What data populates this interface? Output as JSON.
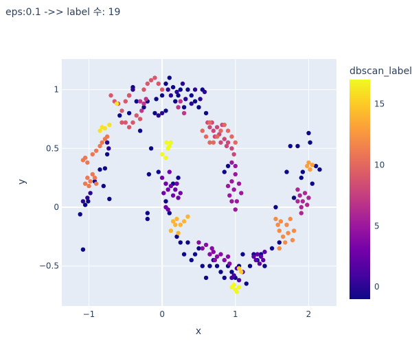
{
  "chart_data": {
    "type": "scatter",
    "title": "eps:0.1 ->> label 수: 19",
    "xlabel": "x",
    "ylabel": "y",
    "xlim": [
      -1.37,
      2.38
    ],
    "ylim": [
      -0.84,
      1.26
    ],
    "xticks": [
      -1,
      0,
      1,
      2
    ],
    "yticks": [
      -0.5,
      0,
      0.5,
      1
    ],
    "ytick_labels": [
      "−0.5",
      "0",
      "0.5",
      "1"
    ],
    "grid": true,
    "colorbar": {
      "title": "dbscan_label",
      "range": [
        -1,
        17
      ],
      "ticks": [
        0,
        5,
        10,
        15
      ],
      "colorscale": [
        "#0d0887",
        "#46039f",
        "#7201a8",
        "#9c179e",
        "#bd3786",
        "#d8576b",
        "#ed7953",
        "#fb9f3a",
        "#fdca26",
        "#f0f921"
      ]
    },
    "points": [
      [
        -1.12,
        -0.06,
        -1
      ],
      [
        -1.08,
        -0.36,
        -1
      ],
      [
        -1.05,
        0.02,
        -1
      ],
      [
        -1.01,
        0.05,
        -1
      ],
      [
        -0.92,
        0.22,
        -1
      ],
      [
        -0.85,
        0.32,
        -1
      ],
      [
        -0.8,
        0.18,
        -1
      ],
      [
        -0.78,
        0.33,
        -1
      ],
      [
        -0.75,
        0.45,
        -1
      ],
      [
        -0.72,
        0.07,
        -1
      ],
      [
        -0.58,
        0.78,
        -1
      ],
      [
        -0.45,
        0.8,
        -1
      ],
      [
        -0.4,
        1.02,
        -1
      ],
      [
        -0.35,
        0.9,
        -1
      ],
      [
        -0.3,
        0.65,
        -1
      ],
      [
        -0.25,
        0.85,
        -1
      ],
      [
        -0.2,
        0.9,
        -1
      ],
      [
        -0.2,
        -0.05,
        -1
      ],
      [
        -0.1,
        0.8,
        -1
      ],
      [
        -0.08,
        0.92,
        -1
      ],
      [
        0.0,
        0.95,
        -1
      ],
      [
        0.05,
        0.82,
        -1
      ],
      [
        0.05,
        1.05,
        -1
      ],
      [
        0.1,
        1.1,
        -1
      ],
      [
        0.15,
        1.02,
        -1
      ],
      [
        0.18,
        0.9,
        -1
      ],
      [
        0.22,
        0.95,
        -1
      ],
      [
        0.25,
        1.0,
        -1
      ],
      [
        0.3,
        0.85,
        -1
      ],
      [
        0.35,
        1.0,
        -1
      ],
      [
        0.4,
        0.95,
        -1
      ],
      [
        0.45,
        0.9,
        -1
      ],
      [
        0.5,
        0.85,
        -1
      ],
      [
        0.55,
        1.0,
        -1
      ],
      [
        0.6,
        0.8,
        -1
      ],
      [
        -0.15,
        0.5,
        -1
      ],
      [
        -0.18,
        0.28,
        -1
      ],
      [
        -0.2,
        -0.1,
        -1
      ],
      [
        -0.05,
        0.3,
        -1
      ],
      [
        0.05,
        0.05,
        -1
      ],
      [
        0.1,
        -0.05,
        -1
      ],
      [
        0.15,
        0.2,
        -1
      ],
      [
        0.22,
        0.25,
        -1
      ],
      [
        0.2,
        -0.25,
        -1
      ],
      [
        0.25,
        -0.3,
        -1
      ],
      [
        0.3,
        -0.4,
        -1
      ],
      [
        0.35,
        -0.3,
        -1
      ],
      [
        0.4,
        -0.45,
        -1
      ],
      [
        0.45,
        -0.4,
        -1
      ],
      [
        0.5,
        -0.35,
        -1
      ],
      [
        0.55,
        -0.5,
        -1
      ],
      [
        0.6,
        -0.6,
        -1
      ],
      [
        0.65,
        -0.5,
        -1
      ],
      [
        0.7,
        -0.45,
        -1
      ],
      [
        0.75,
        -0.5,
        -1
      ],
      [
        0.8,
        -0.55,
        -1
      ],
      [
        0.85,
        -0.6,
        -1
      ],
      [
        0.9,
        -0.5,
        -1
      ],
      [
        0.95,
        -0.55,
        -1
      ],
      [
        1.0,
        -0.6,
        -1
      ],
      [
        1.05,
        -0.5,
        -1
      ],
      [
        1.1,
        -0.4,
        -1
      ],
      [
        1.15,
        -0.65,
        -1
      ],
      [
        1.2,
        -0.5,
        -1
      ],
      [
        1.25,
        -0.4,
        -1
      ],
      [
        1.3,
        -0.45,
        -1
      ],
      [
        1.35,
        -0.4,
        -1
      ],
      [
        1.4,
        -0.5,
        -1
      ],
      [
        1.5,
        -0.35,
        -1
      ],
      [
        1.55,
        0.0,
        -1
      ],
      [
        1.6,
        -0.3,
        -1
      ],
      [
        1.7,
        0.3,
        -1
      ],
      [
        1.75,
        0.52,
        -1
      ],
      [
        1.8,
        0.08,
        -1
      ],
      [
        1.85,
        0.52,
        -1
      ],
      [
        1.9,
        0.25,
        -1
      ],
      [
        1.92,
        0.3,
        -1
      ],
      [
        2.0,
        0.63,
        -1
      ],
      [
        2.02,
        0.55,
        -1
      ],
      [
        2.05,
        0.2,
        -1
      ],
      [
        2.1,
        0.35,
        -1
      ],
      [
        2.15,
        0.32,
        -1
      ],
      [
        0.85,
        0.3,
        -1
      ],
      [
        0.9,
        0.35,
        -1
      ],
      [
        -1.08,
        0.05,
        0
      ],
      [
        -1.02,
        0.08,
        0
      ],
      [
        -0.98,
        0.12,
        0
      ],
      [
        -0.75,
        0.55,
        0
      ],
      [
        -0.73,
        0.5,
        0
      ],
      [
        -0.45,
        0.95,
        0
      ],
      [
        -0.4,
        1.0,
        0
      ],
      [
        0.08,
        1.0,
        0
      ],
      [
        0.12,
        0.95,
        0
      ],
      [
        0.2,
        0.98,
        0
      ],
      [
        0.28,
        1.05,
        0
      ],
      [
        0.32,
        0.92,
        0
      ],
      [
        0.0,
        0.8,
        0
      ],
      [
        -0.05,
        0.78,
        0
      ],
      [
        0.4,
        0.88,
        0
      ],
      [
        0.45,
        1.0,
        0
      ],
      [
        0.52,
        0.92,
        0
      ],
      [
        0.58,
        0.98,
        0
      ],
      [
        0.95,
        -0.6,
        1
      ],
      [
        0.98,
        -0.58,
        1
      ],
      [
        1.02,
        -0.52,
        1
      ],
      [
        1.05,
        -0.62,
        1
      ],
      [
        1.1,
        -0.55,
        1
      ],
      [
        1.25,
        -0.42,
        2
      ],
      [
        1.28,
        -0.45,
        2
      ],
      [
        1.3,
        -0.4,
        2
      ],
      [
        1.33,
        -0.48,
        2
      ],
      [
        1.35,
        -0.42,
        2
      ],
      [
        1.38,
        -0.45,
        2
      ],
      [
        1.4,
        -0.38,
        2
      ],
      [
        0.0,
        0.25,
        3
      ],
      [
        0.02,
        0.12,
        3
      ],
      [
        0.05,
        0.2,
        3
      ],
      [
        0.08,
        0.15,
        3
      ],
      [
        0.1,
        0.3,
        3
      ],
      [
        0.12,
        0.18,
        3
      ],
      [
        0.15,
        0.1,
        3
      ],
      [
        0.18,
        0.15,
        3
      ],
      [
        0.2,
        0.2,
        3
      ],
      [
        0.22,
        0.08,
        3
      ],
      [
        0.25,
        0.12,
        3
      ],
      [
        0.05,
        0.0,
        3
      ],
      [
        0.08,
        -0.02,
        3
      ],
      [
        0.5,
        -0.3,
        4
      ],
      [
        0.55,
        -0.35,
        4
      ],
      [
        0.6,
        -0.32,
        4
      ],
      [
        0.65,
        -0.4,
        4
      ],
      [
        0.7,
        -0.38,
        4
      ],
      [
        0.75,
        -0.42,
        4
      ],
      [
        0.8,
        -0.4,
        4
      ],
      [
        0.85,
        -0.45,
        4
      ],
      [
        0.9,
        -0.42,
        4
      ],
      [
        0.92,
        -0.48,
        4
      ],
      [
        0.72,
        -0.45,
        4
      ],
      [
        0.68,
        -0.35,
        4
      ],
      [
        0.9,
        0.18,
        5
      ],
      [
        0.92,
        0.1,
        5
      ],
      [
        0.95,
        0.22,
        5
      ],
      [
        0.98,
        0.15,
        5
      ],
      [
        1.0,
        0.28,
        5
      ],
      [
        1.02,
        0.05,
        5
      ],
      [
        1.05,
        0.2,
        5
      ],
      [
        1.0,
        -0.02,
        5
      ],
      [
        0.95,
        0.05,
        5
      ],
      [
        1.08,
        0.12,
        5
      ],
      [
        1.0,
        0.35,
        5
      ],
      [
        0.95,
        0.38,
        5
      ],
      [
        1.85,
        0.05,
        6
      ],
      [
        1.88,
        0.1,
        6
      ],
      [
        1.9,
        0.0,
        6
      ],
      [
        1.92,
        0.05,
        6
      ],
      [
        1.95,
        0.12,
        6
      ],
      [
        1.98,
        0.02,
        6
      ],
      [
        2.0,
        0.08,
        6
      ],
      [
        1.85,
        0.15,
        6
      ],
      [
        1.9,
        -0.05,
        6
      ],
      [
        -0.3,
        0.9,
        7
      ],
      [
        -0.28,
        0.82,
        7
      ],
      [
        -0.25,
        0.88,
        7
      ],
      [
        -0.22,
        0.92,
        7
      ],
      [
        0.22,
        0.85,
        7
      ],
      [
        0.25,
        0.9,
        7
      ],
      [
        0.3,
        0.8,
        7
      ],
      [
        0.62,
        0.72,
        8
      ],
      [
        0.65,
        0.68,
        8
      ],
      [
        0.68,
        0.72,
        8
      ],
      [
        0.7,
        0.65,
        8
      ],
      [
        0.72,
        0.6,
        8
      ],
      [
        0.75,
        0.68,
        8
      ],
      [
        0.78,
        0.62,
        8
      ],
      [
        0.8,
        0.55,
        8
      ],
      [
        0.85,
        0.58,
        8
      ],
      [
        0.88,
        0.52,
        8
      ],
      [
        0.9,
        0.55,
        8
      ],
      [
        0.95,
        0.5,
        8
      ],
      [
        0.98,
        0.45,
        8
      ],
      [
        0.82,
        0.7,
        8
      ],
      [
        -0.7,
        0.95,
        9
      ],
      [
        -0.65,
        0.9,
        9
      ],
      [
        -0.6,
        0.88,
        9
      ],
      [
        -0.55,
        0.82,
        9
      ],
      [
        -0.5,
        0.72,
        9
      ],
      [
        -0.45,
        0.68,
        9
      ],
      [
        -0.4,
        0.72,
        9
      ],
      [
        -0.35,
        0.78,
        9
      ],
      [
        -0.3,
        0.75,
        9
      ],
      [
        -0.25,
        1.0,
        9
      ],
      [
        -0.2,
        1.05,
        9
      ],
      [
        -0.15,
        1.08,
        9
      ],
      [
        -0.1,
        1.1,
        9
      ],
      [
        -0.05,
        1.05,
        9
      ],
      [
        0.0,
        1.0,
        9
      ],
      [
        -0.45,
        0.95,
        9
      ],
      [
        -0.5,
        0.9,
        9
      ],
      [
        -0.55,
        0.72,
        9
      ],
      [
        0.55,
        0.65,
        10
      ],
      [
        0.6,
        0.6,
        10
      ],
      [
        0.65,
        0.55,
        10
      ],
      [
        0.7,
        0.55,
        10
      ],
      [
        0.75,
        0.6,
        10
      ],
      [
        0.8,
        0.65,
        10
      ],
      [
        0.85,
        0.7,
        10
      ],
      [
        0.9,
        0.65,
        10
      ],
      [
        0.95,
        0.6,
        10
      ],
      [
        1.0,
        0.55,
        10
      ],
      [
        0.65,
        0.72,
        10
      ],
      [
        -1.05,
        0.2,
        11
      ],
      [
        -1.02,
        0.25,
        11
      ],
      [
        -1.0,
        0.18,
        11
      ],
      [
        -0.98,
        0.22,
        11
      ],
      [
        -0.95,
        0.28,
        11
      ],
      [
        -0.92,
        0.25,
        11
      ],
      [
        -0.9,
        0.2,
        11
      ],
      [
        -1.08,
        0.4,
        11
      ],
      [
        -1.05,
        0.42,
        11
      ],
      [
        -1.02,
        0.38,
        11
      ],
      [
        -0.95,
        0.45,
        11
      ],
      [
        -0.9,
        0.48,
        11
      ],
      [
        -0.85,
        0.52,
        11
      ],
      [
        -0.82,
        0.55,
        11
      ],
      [
        -0.78,
        0.58,
        11
      ],
      [
        -0.75,
        0.6,
        11
      ],
      [
        1.55,
        -0.1,
        12
      ],
      [
        1.58,
        -0.15,
        12
      ],
      [
        1.6,
        -0.2,
        12
      ],
      [
        1.62,
        -0.12,
        12
      ],
      [
        1.65,
        -0.25,
        12
      ],
      [
        1.68,
        -0.3,
        12
      ],
      [
        1.7,
        -0.15,
        12
      ],
      [
        1.72,
        -0.22,
        12
      ],
      [
        1.75,
        -0.1,
        12
      ],
      [
        1.78,
        -0.28,
        12
      ],
      [
        1.8,
        -0.2,
        12
      ],
      [
        1.6,
        -0.35,
        12
      ],
      [
        1.98,
        0.35,
        13
      ],
      [
        2.0,
        0.38,
        13
      ],
      [
        2.02,
        0.32,
        13
      ],
      [
        2.05,
        0.36,
        13
      ],
      [
        0.15,
        -0.12,
        14
      ],
      [
        0.18,
        -0.15,
        14
      ],
      [
        0.2,
        -0.1,
        14
      ],
      [
        0.25,
        -0.15,
        14
      ],
      [
        0.3,
        -0.12,
        14
      ],
      [
        0.35,
        -0.08,
        14
      ],
      [
        0.12,
        -0.2,
        14
      ],
      [
        0.22,
        -0.22,
        14
      ],
      [
        1.05,
        -0.52,
        15
      ],
      [
        1.08,
        -0.55,
        15
      ],
      [
        -0.85,
        0.65,
        16
      ],
      [
        -0.82,
        0.68,
        16
      ],
      [
        -0.78,
        0.67,
        16
      ],
      [
        -0.72,
        0.7,
        16
      ],
      [
        -0.62,
        0.88,
        16
      ],
      [
        0.0,
        0.45,
        17
      ],
      [
        0.05,
        0.42,
        17
      ],
      [
        0.08,
        0.5,
        17
      ],
      [
        0.1,
        0.52,
        17
      ],
      [
        0.12,
        0.55,
        17
      ],
      [
        0.06,
        0.55,
        17
      ],
      [
        0.95,
        -0.68,
        17
      ],
      [
        1.0,
        -0.7,
        17
      ],
      [
        1.05,
        -0.68,
        17
      ],
      [
        0.98,
        -0.66,
        17
      ],
      [
        1.02,
        -0.72,
        17
      ]
    ]
  }
}
